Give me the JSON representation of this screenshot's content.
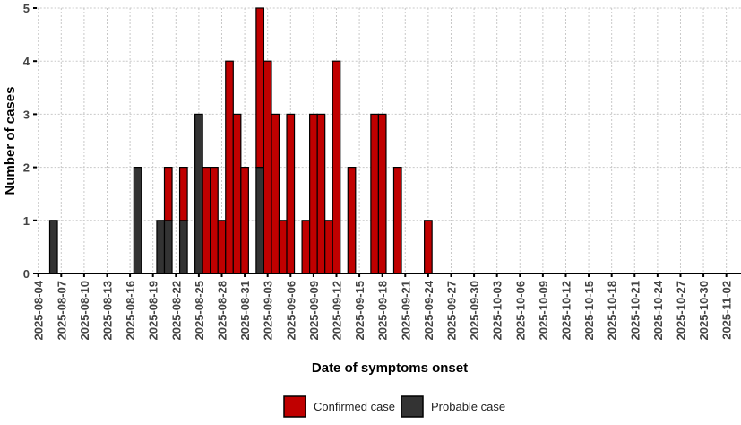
{
  "chart_data": {
    "type": "bar",
    "stacked": true,
    "xlabel": "Date of symptoms onset",
    "ylabel": "Number of cases",
    "ylim": [
      0,
      5
    ],
    "yticks": [
      0,
      1,
      2,
      3,
      4,
      5
    ],
    "xlim": [
      "2025-08-04",
      "2025-11-02"
    ],
    "xticks": [
      "2025-08-04",
      "2025-08-07",
      "2025-08-10",
      "2025-08-13",
      "2025-08-16",
      "2025-08-19",
      "2025-08-22",
      "2025-08-25",
      "2025-08-28",
      "2025-08-31",
      "2025-09-03",
      "2025-09-06",
      "2025-09-09",
      "2025-09-12",
      "2025-09-15",
      "2025-09-18",
      "2025-09-21",
      "2025-09-24",
      "2025-09-27",
      "2025-09-30",
      "2025-10-03",
      "2025-10-06",
      "2025-10-09",
      "2025-10-12",
      "2025-10-15",
      "2025-10-18",
      "2025-10-21",
      "2025-10-24",
      "2025-10-27",
      "2025-10-30",
      "2025-11-02"
    ],
    "grid": true,
    "legend_position": "bottom",
    "series": [
      {
        "name": "Probable case",
        "color": "#333333",
        "points": [
          [
            "2025-08-05",
            1
          ],
          [
            "2025-08-16",
            2
          ],
          [
            "2025-08-19",
            1
          ],
          [
            "2025-08-20",
            1
          ],
          [
            "2025-08-22",
            1
          ],
          [
            "2025-08-24",
            3
          ],
          [
            "2025-09-01",
            2
          ]
        ]
      },
      {
        "name": "Confirmed case",
        "color": "#C00000",
        "points": [
          [
            "2025-08-20",
            1
          ],
          [
            "2025-08-22",
            1
          ],
          [
            "2025-08-25",
            2
          ],
          [
            "2025-08-26",
            2
          ],
          [
            "2025-08-27",
            1
          ],
          [
            "2025-08-28",
            4
          ],
          [
            "2025-08-29",
            3
          ],
          [
            "2025-08-30",
            2
          ],
          [
            "2025-09-01",
            3
          ],
          [
            "2025-09-02",
            4
          ],
          [
            "2025-09-03",
            3
          ],
          [
            "2025-09-04",
            1
          ],
          [
            "2025-09-05",
            3
          ],
          [
            "2025-09-07",
            1
          ],
          [
            "2025-09-08",
            3
          ],
          [
            "2025-09-09",
            3
          ],
          [
            "2025-09-10",
            1
          ],
          [
            "2025-09-11",
            4
          ],
          [
            "2025-09-13",
            2
          ],
          [
            "2025-09-16",
            3
          ],
          [
            "2025-09-17",
            3
          ],
          [
            "2025-09-19",
            2
          ],
          [
            "2025-09-23",
            1
          ]
        ]
      }
    ],
    "legend": [
      {
        "label": "Confirmed case",
        "color": "#C00000"
      },
      {
        "label": "Probable case",
        "color": "#333333"
      }
    ]
  }
}
